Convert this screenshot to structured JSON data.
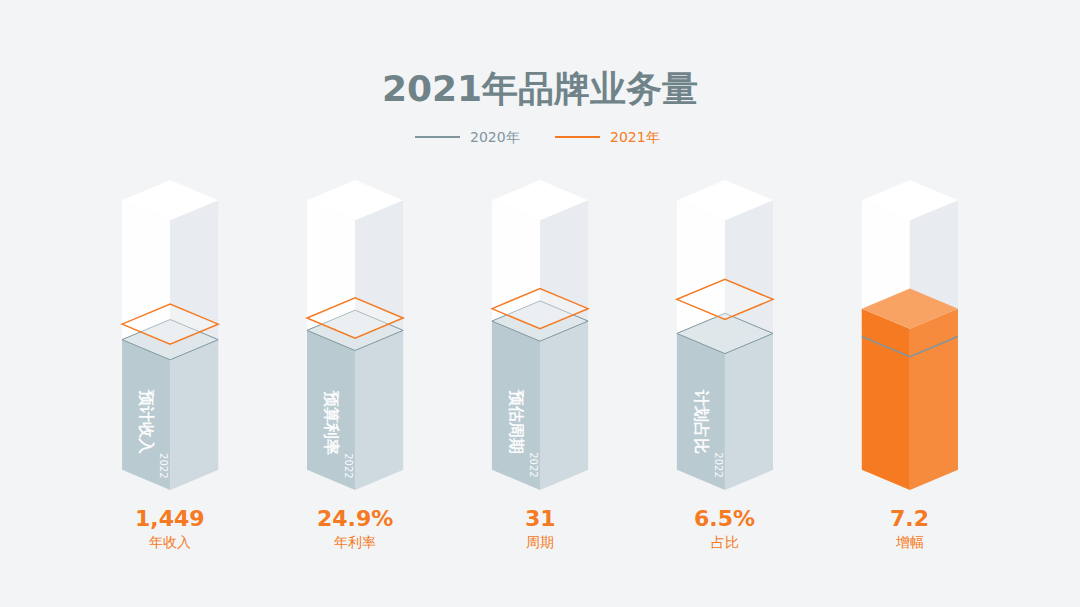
{
  "chart_data": {
    "type": "bar",
    "title": "2021年品牌业务量",
    "categories": [
      "年收入",
      "年利率",
      "周期",
      "占比",
      "增幅"
    ],
    "series": [
      {
        "name": "2020年",
        "color": "#7f969e",
        "values": [
          42,
          45,
          48,
          44,
          43
        ]
      },
      {
        "name": "2021年",
        "color": "#f57a22",
        "values": [
          47,
          49,
          52,
          55,
          52
        ]
      }
    ],
    "colors": [
      "#b9cad1",
      "#b9cad1",
      "#b9cad1",
      "#b9cad1",
      "#f57a22"
    ],
    "value_texts": [
      "1,449",
      "24.9%",
      "31",
      "6.5%",
      "7.2"
    ],
    "column_texts": [
      "预计收入",
      "预算利率",
      "预估周期",
      "计划占比",
      null
    ],
    "column_years": [
      "2022",
      "2022",
      "2022",
      "2022",
      null
    ],
    "ylim": [
      0,
      100
    ],
    "tick_labels": false,
    "grid": false,
    "legend": "top"
  }
}
